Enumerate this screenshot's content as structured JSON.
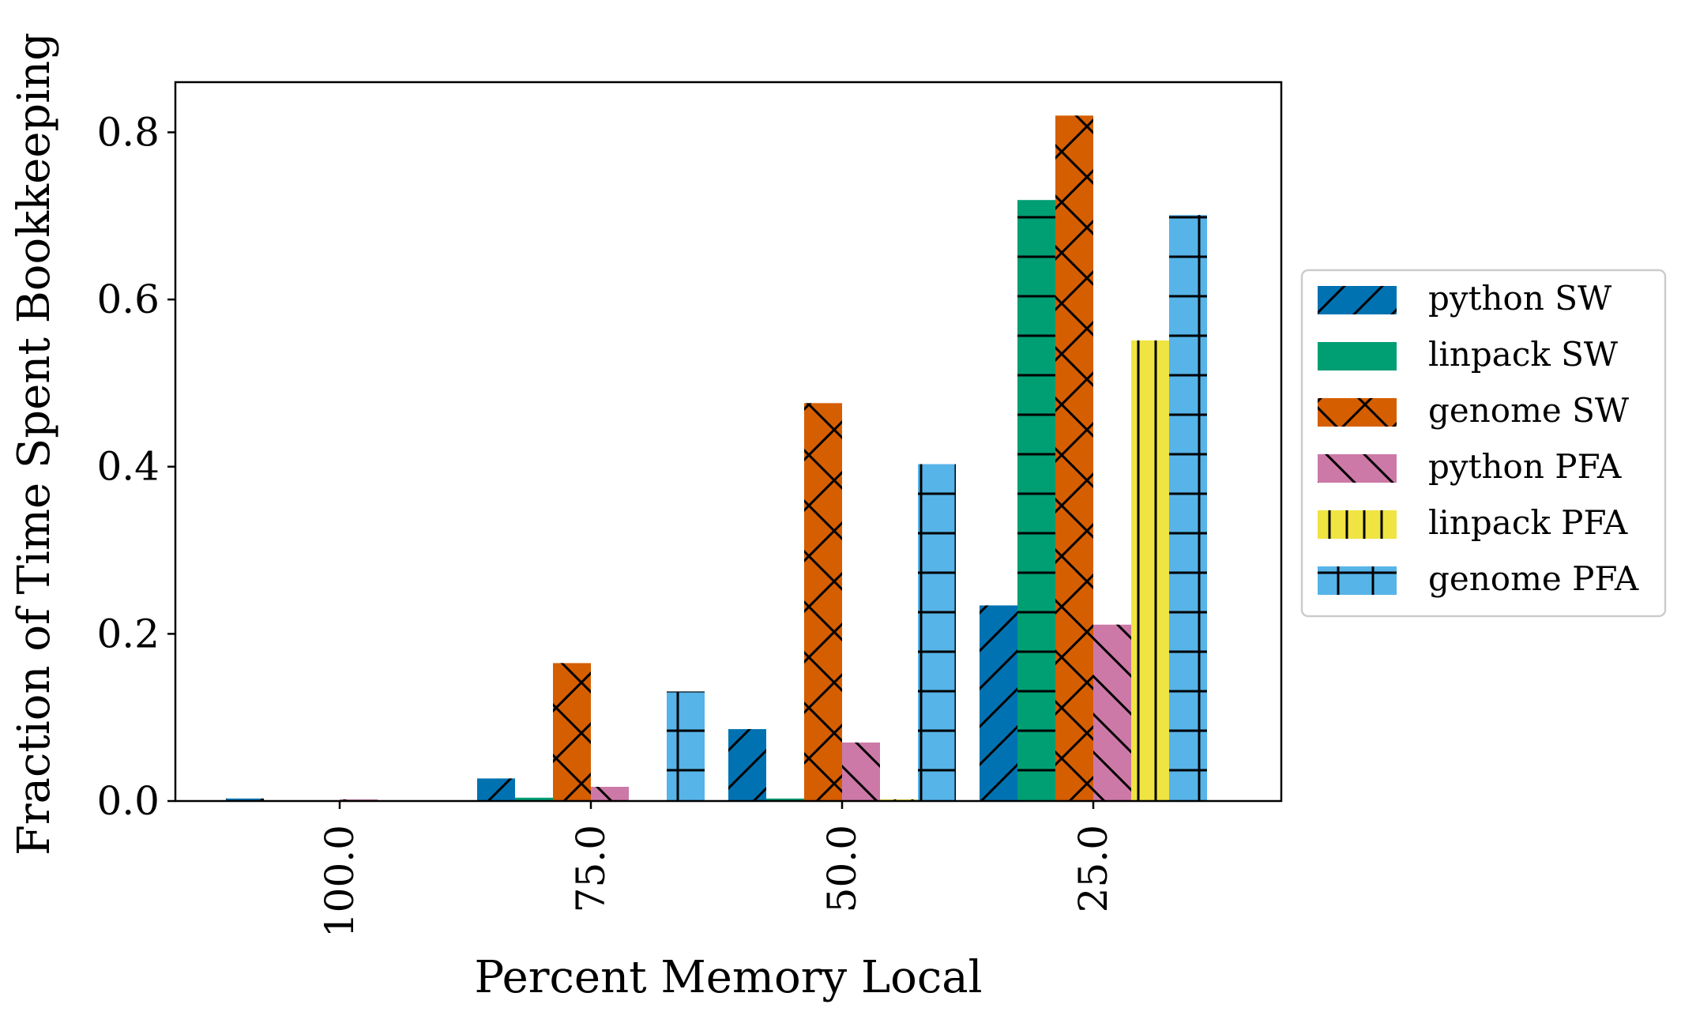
{
  "chart_data": {
    "type": "bar",
    "categories": [
      "100.0",
      "75.0",
      "50.0",
      "25.0"
    ],
    "xlabel": "Percent Memory Local",
    "ylabel": "Fraction of Time Spent Bookkeeping",
    "ylim": [
      0,
      0.86
    ],
    "yticks": [
      "0.0",
      "0.2",
      "0.4",
      "0.6",
      "0.8"
    ],
    "grid": false,
    "legend_position": "right",
    "series": [
      {
        "name": "python SW",
        "color": "#0072B2",
        "hatch": "forward-diagonal",
        "values": [
          0.003,
          0.027,
          0.086,
          0.234
        ]
      },
      {
        "name": "linpack SW",
        "color": "#009E73",
        "hatch": "horizontal",
        "values": [
          0.0,
          0.004,
          0.003,
          0.719
        ]
      },
      {
        "name": "genome SW",
        "color": "#D55E00",
        "hatch": "cross-diagonal",
        "values": [
          0.0,
          0.165,
          0.476,
          0.82
        ]
      },
      {
        "name": "python PFA",
        "color": "#CC79A7",
        "hatch": "back-diagonal",
        "values": [
          0.002,
          0.017,
          0.07,
          0.211
        ]
      },
      {
        "name": "linpack PFA",
        "color": "#F0E442",
        "hatch": "vertical",
        "values": [
          0.0,
          0.0,
          0.002,
          0.551
        ]
      },
      {
        "name": "genome PFA",
        "color": "#56B4E9",
        "hatch": "plus-grid",
        "values": [
          0.0,
          0.131,
          0.403,
          0.701
        ]
      }
    ]
  }
}
